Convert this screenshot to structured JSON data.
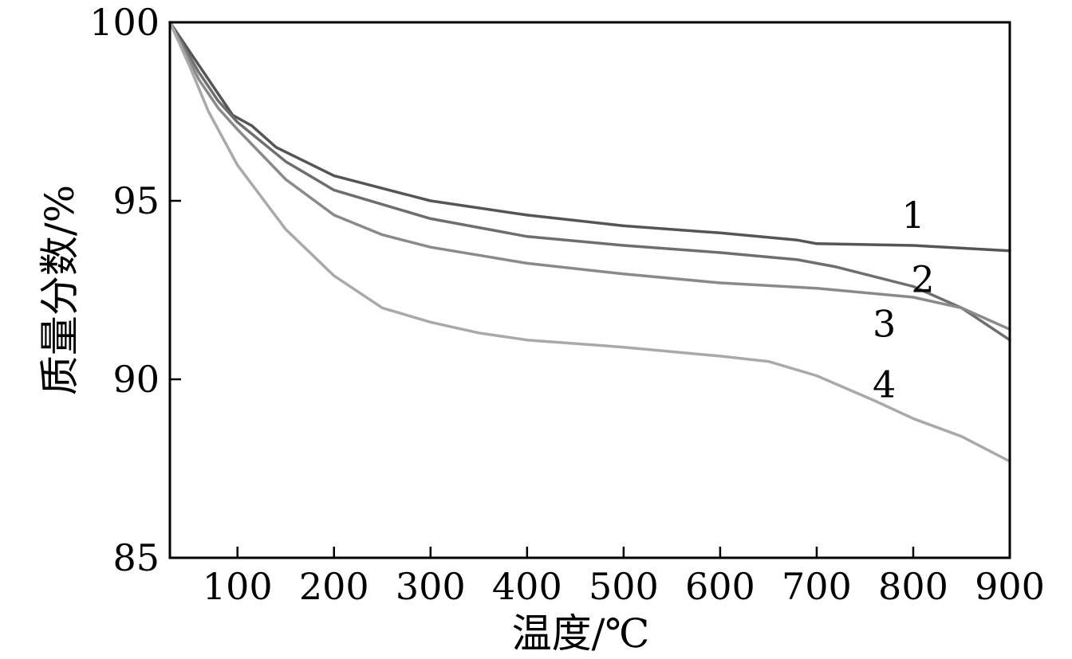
{
  "chart_data": {
    "type": "line",
    "title": "",
    "xlabel": "温度/℃",
    "ylabel": "质量分数/%",
    "xlim": [
      30,
      900
    ],
    "ylim": [
      85,
      100
    ],
    "xticks": [
      100,
      200,
      300,
      400,
      500,
      600,
      700,
      800,
      900
    ],
    "yticks": [
      85,
      90,
      95,
      100
    ],
    "grid": false,
    "legend": "none",
    "series": [
      {
        "name": "1",
        "color": "#555555",
        "points": [
          [
            30,
            100
          ],
          [
            60,
            98.8
          ],
          [
            80,
            98.0
          ],
          [
            95,
            97.4
          ],
          [
            115,
            97.1
          ],
          [
            140,
            96.5
          ],
          [
            200,
            95.7
          ],
          [
            300,
            95.0
          ],
          [
            400,
            94.6
          ],
          [
            500,
            94.3
          ],
          [
            600,
            94.1
          ],
          [
            680,
            93.9
          ],
          [
            700,
            93.8
          ],
          [
            800,
            93.75
          ],
          [
            900,
            93.6
          ]
        ]
      },
      {
        "name": "2",
        "color": "#6e6e6e",
        "points": [
          [
            30,
            100
          ],
          [
            60,
            98.6
          ],
          [
            80,
            97.8
          ],
          [
            100,
            97.2
          ],
          [
            150,
            96.1
          ],
          [
            200,
            95.3
          ],
          [
            300,
            94.5
          ],
          [
            400,
            94.0
          ],
          [
            500,
            93.75
          ],
          [
            600,
            93.55
          ],
          [
            680,
            93.35
          ],
          [
            720,
            93.15
          ],
          [
            800,
            92.6
          ],
          [
            850,
            92.0
          ],
          [
            900,
            91.1
          ]
        ]
      },
      {
        "name": "3",
        "color": "#8a8a8a",
        "points": [
          [
            30,
            100
          ],
          [
            60,
            98.4
          ],
          [
            80,
            97.6
          ],
          [
            100,
            97.0
          ],
          [
            150,
            95.6
          ],
          [
            200,
            94.6
          ],
          [
            250,
            94.05
          ],
          [
            300,
            93.7
          ],
          [
            400,
            93.25
          ],
          [
            500,
            92.95
          ],
          [
            600,
            92.7
          ],
          [
            700,
            92.55
          ],
          [
            800,
            92.3
          ],
          [
            850,
            92.0
          ],
          [
            900,
            91.4
          ]
        ]
      },
      {
        "name": "4",
        "color": "#a9a9a9",
        "points": [
          [
            30,
            100
          ],
          [
            50,
            98.8
          ],
          [
            70,
            97.5
          ],
          [
            100,
            96.0
          ],
          [
            150,
            94.2
          ],
          [
            200,
            92.9
          ],
          [
            250,
            92.0
          ],
          [
            300,
            91.6
          ],
          [
            350,
            91.3
          ],
          [
            400,
            91.1
          ],
          [
            500,
            90.9
          ],
          [
            600,
            90.65
          ],
          [
            650,
            90.5
          ],
          [
            700,
            90.1
          ],
          [
            760,
            89.4
          ],
          [
            800,
            88.9
          ],
          [
            850,
            88.4
          ],
          [
            900,
            87.7
          ]
        ]
      }
    ]
  }
}
